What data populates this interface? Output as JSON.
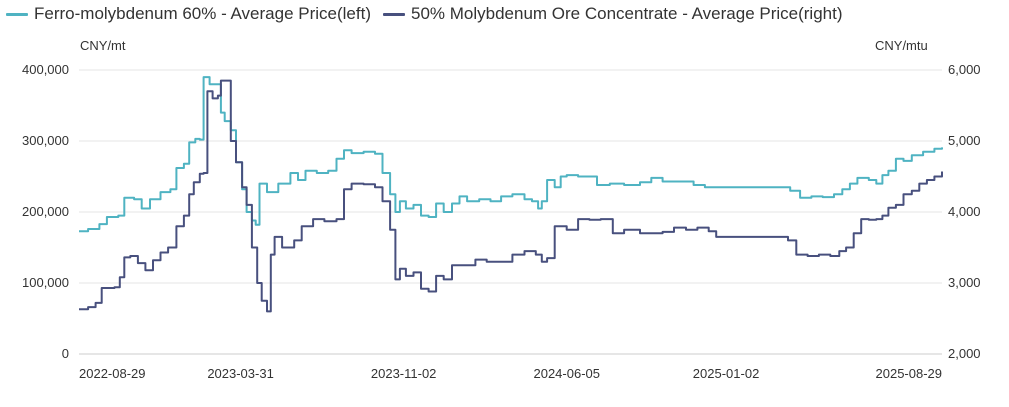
{
  "chart_data": {
    "type": "line",
    "left_unit": "CNY/mt",
    "right_unit": "CNY/mtu",
    "left_axis": {
      "min": 0,
      "max": 400000,
      "ticks": [
        "0",
        "100,000",
        "200,000",
        "300,000",
        "400,000"
      ],
      "tick_values": [
        0,
        100000,
        200000,
        300000,
        400000
      ]
    },
    "right_axis": {
      "min": 2000,
      "max": 6000,
      "ticks": [
        "2,000",
        "3,000",
        "4,000",
        "5,000",
        "6,000"
      ],
      "tick_values": [
        2000,
        3000,
        4000,
        5000,
        6000
      ]
    },
    "x_ticks": [
      "2022-08-29",
      "2023-03-31",
      "2023-11-02",
      "2024-06-05",
      "2025-01-02",
      "2025-08-29"
    ],
    "x_range": [
      "2022-08-29",
      "2025-10-15"
    ],
    "grid": true,
    "legend_position": "top-left",
    "series": [
      {
        "name": "Ferro-molybdenum 60% - Average Price(left)",
        "axis": "left",
        "color": "#4fb3c2",
        "points": [
          [
            "2022-08-29",
            173000
          ],
          [
            "2022-09-10",
            176000
          ],
          [
            "2022-09-25",
            183000
          ],
          [
            "2022-10-05",
            193000
          ],
          [
            "2022-10-20",
            195000
          ],
          [
            "2022-10-28",
            220000
          ],
          [
            "2022-11-10",
            218000
          ],
          [
            "2022-11-20",
            205000
          ],
          [
            "2022-12-01",
            218000
          ],
          [
            "2022-12-15",
            228000
          ],
          [
            "2022-12-28",
            232000
          ],
          [
            "2023-01-05",
            262000
          ],
          [
            "2023-01-15",
            268000
          ],
          [
            "2023-01-22",
            298000
          ],
          [
            "2023-01-30",
            303000
          ],
          [
            "2023-02-05",
            302000
          ],
          [
            "2023-02-10",
            390000
          ],
          [
            "2023-02-15",
            390000
          ],
          [
            "2023-02-18",
            380000
          ],
          [
            "2023-02-28",
            380000
          ],
          [
            "2023-03-05",
            340000
          ],
          [
            "2023-03-10",
            328000
          ],
          [
            "2023-03-18",
            315000
          ],
          [
            "2023-03-25",
            270000
          ],
          [
            "2023-04-02",
            232000
          ],
          [
            "2023-04-08",
            200000
          ],
          [
            "2023-04-15",
            188000
          ],
          [
            "2023-04-20",
            182000
          ],
          [
            "2023-04-25",
            240000
          ],
          [
            "2023-05-05",
            228000
          ],
          [
            "2023-05-20",
            240000
          ],
          [
            "2023-06-05",
            255000
          ],
          [
            "2023-06-15",
            245000
          ],
          [
            "2023-06-25",
            258000
          ],
          [
            "2023-07-10",
            255000
          ],
          [
            "2023-07-25",
            258000
          ],
          [
            "2023-08-05",
            275000
          ],
          [
            "2023-08-15",
            287000
          ],
          [
            "2023-08-25",
            283000
          ],
          [
            "2023-09-10",
            285000
          ],
          [
            "2023-09-25",
            282000
          ],
          [
            "2023-10-05",
            255000
          ],
          [
            "2023-10-15",
            225000
          ],
          [
            "2023-10-22",
            200000
          ],
          [
            "2023-10-28",
            215000
          ],
          [
            "2023-11-05",
            205000
          ],
          [
            "2023-11-15",
            210000
          ],
          [
            "2023-11-25",
            195000
          ],
          [
            "2023-12-05",
            193000
          ],
          [
            "2023-12-15",
            212000
          ],
          [
            "2023-12-25",
            200000
          ],
          [
            "2024-01-05",
            212000
          ],
          [
            "2024-01-15",
            222000
          ],
          [
            "2024-01-25",
            215000
          ],
          [
            "2024-02-10",
            218000
          ],
          [
            "2024-02-25",
            215000
          ],
          [
            "2024-03-10",
            222000
          ],
          [
            "2024-03-25",
            225000
          ],
          [
            "2024-04-10",
            218000
          ],
          [
            "2024-04-20",
            215000
          ],
          [
            "2024-04-28",
            205000
          ],
          [
            "2024-05-03",
            215000
          ],
          [
            "2024-05-10",
            245000
          ],
          [
            "2024-05-20",
            235000
          ],
          [
            "2024-05-28",
            250000
          ],
          [
            "2024-06-05",
            252000
          ],
          [
            "2024-06-20",
            250000
          ],
          [
            "2024-07-05",
            250000
          ],
          [
            "2024-07-15",
            238000
          ],
          [
            "2024-08-01",
            240000
          ],
          [
            "2024-08-20",
            238000
          ],
          [
            "2024-09-10",
            242000
          ],
          [
            "2024-09-25",
            248000
          ],
          [
            "2024-10-10",
            243000
          ],
          [
            "2024-11-01",
            243000
          ],
          [
            "2024-11-20",
            238000
          ],
          [
            "2024-12-05",
            235000
          ],
          [
            "2024-12-25",
            235000
          ],
          [
            "2025-01-20",
            235000
          ],
          [
            "2025-02-15",
            235000
          ],
          [
            "2025-03-10",
            235000
          ],
          [
            "2025-03-28",
            230000
          ],
          [
            "2025-04-10",
            220000
          ],
          [
            "2025-04-25",
            222000
          ],
          [
            "2025-05-10",
            221000
          ],
          [
            "2025-05-25",
            225000
          ],
          [
            "2025-06-05",
            232000
          ],
          [
            "2025-06-15",
            240000
          ],
          [
            "2025-06-25",
            248000
          ],
          [
            "2025-07-10",
            245000
          ],
          [
            "2025-07-20",
            240000
          ],
          [
            "2025-07-28",
            252000
          ],
          [
            "2025-08-05",
            258000
          ],
          [
            "2025-08-15",
            275000
          ],
          [
            "2025-08-25",
            272000
          ],
          [
            "2025-09-05",
            280000
          ],
          [
            "2025-09-20",
            285000
          ],
          [
            "2025-10-05",
            289000
          ],
          [
            "2025-10-15",
            291000
          ]
        ]
      },
      {
        "name": "50% Molybdenum Ore Concentrate - Average Price(right)",
        "axis": "right",
        "color": "#48507e",
        "points": [
          [
            "2022-08-29",
            2630
          ],
          [
            "2022-09-10",
            2660
          ],
          [
            "2022-09-20",
            2720
          ],
          [
            "2022-09-28",
            2930
          ],
          [
            "2022-10-15",
            2940
          ],
          [
            "2022-10-22",
            3080
          ],
          [
            "2022-10-28",
            3360
          ],
          [
            "2022-11-05",
            3380
          ],
          [
            "2022-11-15",
            3280
          ],
          [
            "2022-11-25",
            3180
          ],
          [
            "2022-12-05",
            3320
          ],
          [
            "2022-12-15",
            3430
          ],
          [
            "2022-12-25",
            3500
          ],
          [
            "2023-01-05",
            3800
          ],
          [
            "2023-01-15",
            3950
          ],
          [
            "2023-01-22",
            4250
          ],
          [
            "2023-01-28",
            4420
          ],
          [
            "2023-02-05",
            4540
          ],
          [
            "2023-02-10",
            4550
          ],
          [
            "2023-02-15",
            5700
          ],
          [
            "2023-02-22",
            5600
          ],
          [
            "2023-03-01",
            5640
          ],
          [
            "2023-03-05",
            5850
          ],
          [
            "2023-03-12",
            5850
          ],
          [
            "2023-03-18",
            5000
          ],
          [
            "2023-03-25",
            4700
          ],
          [
            "2023-04-02",
            4350
          ],
          [
            "2023-04-08",
            4100
          ],
          [
            "2023-04-15",
            3500
          ],
          [
            "2023-04-22",
            3000
          ],
          [
            "2023-04-28",
            2750
          ],
          [
            "2023-05-05",
            2600
          ],
          [
            "2023-05-10",
            3400
          ],
          [
            "2023-05-15",
            3650
          ],
          [
            "2023-05-25",
            3500
          ],
          [
            "2023-06-10",
            3600
          ],
          [
            "2023-06-20",
            3800
          ],
          [
            "2023-07-05",
            3900
          ],
          [
            "2023-07-20",
            3870
          ],
          [
            "2023-08-05",
            3900
          ],
          [
            "2023-08-15",
            4320
          ],
          [
            "2023-08-25",
            4400
          ],
          [
            "2023-09-10",
            4390
          ],
          [
            "2023-09-25",
            4350
          ],
          [
            "2023-10-05",
            4150
          ],
          [
            "2023-10-15",
            3750
          ],
          [
            "2023-10-22",
            3050
          ],
          [
            "2023-10-28",
            3200
          ],
          [
            "2023-11-05",
            3100
          ],
          [
            "2023-11-15",
            3150
          ],
          [
            "2023-11-25",
            2920
          ],
          [
            "2023-12-05",
            2880
          ],
          [
            "2023-12-15",
            3100
          ],
          [
            "2023-12-25",
            3050
          ],
          [
            "2024-01-05",
            3250
          ],
          [
            "2024-01-20",
            3250
          ],
          [
            "2024-02-05",
            3330
          ],
          [
            "2024-02-20",
            3300
          ],
          [
            "2024-03-10",
            3300
          ],
          [
            "2024-03-25",
            3400
          ],
          [
            "2024-04-10",
            3450
          ],
          [
            "2024-04-25",
            3400
          ],
          [
            "2024-05-03",
            3300
          ],
          [
            "2024-05-10",
            3350
          ],
          [
            "2024-05-20",
            3800
          ],
          [
            "2024-06-05",
            3750
          ],
          [
            "2024-06-20",
            3900
          ],
          [
            "2024-07-05",
            3890
          ],
          [
            "2024-07-20",
            3900
          ],
          [
            "2024-08-05",
            3700
          ],
          [
            "2024-08-20",
            3750
          ],
          [
            "2024-09-10",
            3700
          ],
          [
            "2024-09-25",
            3700
          ],
          [
            "2024-10-10",
            3720
          ],
          [
            "2024-10-25",
            3780
          ],
          [
            "2024-11-10",
            3750
          ],
          [
            "2024-11-25",
            3780
          ],
          [
            "2024-12-10",
            3730
          ],
          [
            "2024-12-20",
            3650
          ],
          [
            "2025-01-05",
            3650
          ],
          [
            "2025-02-10",
            3650
          ],
          [
            "2025-03-10",
            3650
          ],
          [
            "2025-03-25",
            3600
          ],
          [
            "2025-04-05",
            3400
          ],
          [
            "2025-04-20",
            3380
          ],
          [
            "2025-05-05",
            3400
          ],
          [
            "2025-05-20",
            3380
          ],
          [
            "2025-06-01",
            3450
          ],
          [
            "2025-06-10",
            3500
          ],
          [
            "2025-06-20",
            3700
          ],
          [
            "2025-06-30",
            3900
          ],
          [
            "2025-07-10",
            3890
          ],
          [
            "2025-07-20",
            3900
          ],
          [
            "2025-07-28",
            3950
          ],
          [
            "2025-08-05",
            4060
          ],
          [
            "2025-08-15",
            4100
          ],
          [
            "2025-08-25",
            4250
          ],
          [
            "2025-09-05",
            4300
          ],
          [
            "2025-09-15",
            4400
          ],
          [
            "2025-09-25",
            4450
          ],
          [
            "2025-10-05",
            4500
          ],
          [
            "2025-10-15",
            4570
          ]
        ]
      }
    ]
  }
}
